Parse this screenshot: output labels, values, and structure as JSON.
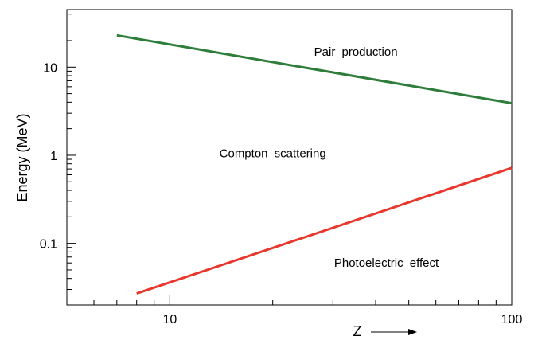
{
  "chart_data": {
    "type": "line",
    "xscale": "log",
    "yscale": "log",
    "xlim": [
      5,
      100
    ],
    "ylim": [
      0.02,
      45
    ],
    "xlabel": "Z",
    "ylabel": "Energy (MeV)",
    "grid": false,
    "x_tick_labels": [
      "10",
      "100"
    ],
    "y_tick_labels": [
      "0.1",
      "1",
      "10"
    ],
    "series": [
      {
        "color": "#2e7d3a",
        "x": [
          7,
          100
        ],
        "y": [
          23,
          3.9
        ]
      },
      {
        "color": "#e8372c",
        "x": [
          8,
          100
        ],
        "y": [
          0.027,
          0.72
        ]
      }
    ],
    "annotations": [
      {
        "text": "Pair production",
        "x": 35,
        "y": 15
      },
      {
        "text": "Compton scattering",
        "x": 20,
        "y": 1.05
      },
      {
        "text": "Photoelectric effect",
        "x": 43,
        "y": 0.06
      }
    ]
  }
}
